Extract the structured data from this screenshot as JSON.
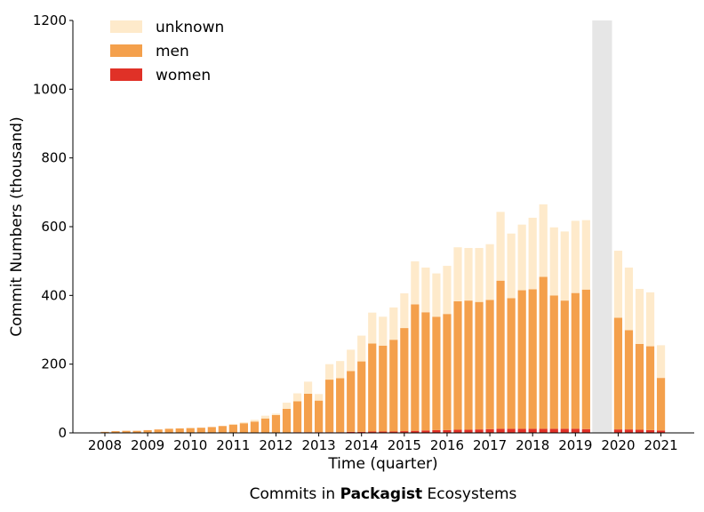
{
  "chart_data": {
    "type": "bar",
    "stacked": true,
    "xlabel": "Time (quarter)",
    "ylabel": "Commit Numbers (thousand)",
    "ylim": [
      0,
      1200
    ],
    "yticks": [
      0,
      200,
      400,
      600,
      800,
      1000,
      1200
    ],
    "x_tick_labels": [
      "2008",
      "2009",
      "2010",
      "2011",
      "2012",
      "2013",
      "2014",
      "2015",
      "2016",
      "2017",
      "2018",
      "2019",
      "2020",
      "2021"
    ],
    "legend_position": "top-left",
    "grid": false,
    "quarters": [
      "2008-Q1",
      "2008-Q2",
      "2008-Q3",
      "2008-Q4",
      "2009-Q1",
      "2009-Q2",
      "2009-Q3",
      "2009-Q4",
      "2010-Q1",
      "2010-Q2",
      "2010-Q3",
      "2010-Q4",
      "2011-Q1",
      "2011-Q2",
      "2011-Q3",
      "2011-Q4",
      "2012-Q1",
      "2012-Q2",
      "2012-Q3",
      "2012-Q4",
      "2013-Q1",
      "2013-Q2",
      "2013-Q3",
      "2013-Q4",
      "2014-Q1",
      "2014-Q2",
      "2014-Q3",
      "2014-Q4",
      "2015-Q1",
      "2015-Q2",
      "2015-Q3",
      "2015-Q4",
      "2016-Q1",
      "2016-Q2",
      "2016-Q3",
      "2016-Q4",
      "2017-Q1",
      "2017-Q2",
      "2017-Q3",
      "2017-Q4",
      "2018-Q1",
      "2018-Q2",
      "2018-Q3",
      "2018-Q4",
      "2019-Q1",
      "2019-Q2",
      "2019-Q3",
      "2019-Q4",
      "2020-Q1",
      "2020-Q2",
      "2020-Q3",
      "2020-Q4",
      "2021-Q1"
    ],
    "series": [
      {
        "name": "women",
        "color": "#e03127",
        "values": [
          0,
          0,
          0,
          0,
          0,
          0,
          0,
          0,
          0,
          0,
          0,
          0,
          0,
          0,
          0,
          0,
          1,
          1,
          2,
          2,
          2,
          2,
          2,
          3,
          3,
          4,
          4,
          4,
          5,
          6,
          7,
          8,
          8,
          9,
          9,
          10,
          11,
          12,
          12,
          12,
          12,
          12,
          12,
          12,
          12,
          11,
          null,
          null,
          10,
          10,
          9,
          8,
          7
        ]
      },
      {
        "name": "men",
        "color": "#f4a04c",
        "values": [
          3,
          5,
          6,
          6,
          8,
          10,
          12,
          13,
          14,
          15,
          17,
          20,
          24,
          28,
          33,
          42,
          51,
          69,
          90,
          112,
          92,
          153,
          157,
          177,
          205,
          256,
          250,
          267,
          300,
          368,
          344,
          330,
          338,
          374,
          376,
          371,
          376,
          431,
          380,
          403,
          406,
          442,
          388,
          373,
          395,
          406,
          null,
          null,
          325,
          289,
          250,
          244,
          153
        ]
      },
      {
        "name": "unknown",
        "color": "#feeacb",
        "values": [
          0,
          0,
          0,
          0,
          0,
          0,
          0,
          0,
          0,
          0,
          0,
          0,
          2,
          3,
          5,
          8,
          4,
          18,
          23,
          35,
          19,
          45,
          50,
          62,
          75,
          90,
          84,
          94,
          101,
          125,
          130,
          126,
          140,
          157,
          153,
          157,
          162,
          200,
          188,
          191,
          208,
          211,
          198,
          201,
          210,
          202,
          null,
          null,
          195,
          182,
          160,
          157,
          95
        ]
      }
    ],
    "gap_quarters": [
      "2019-Q3",
      "2019-Q4"
    ]
  },
  "caption": {
    "prefix": "Commits in ",
    "bold": "Packagist",
    "suffix": " Ecosystems"
  }
}
